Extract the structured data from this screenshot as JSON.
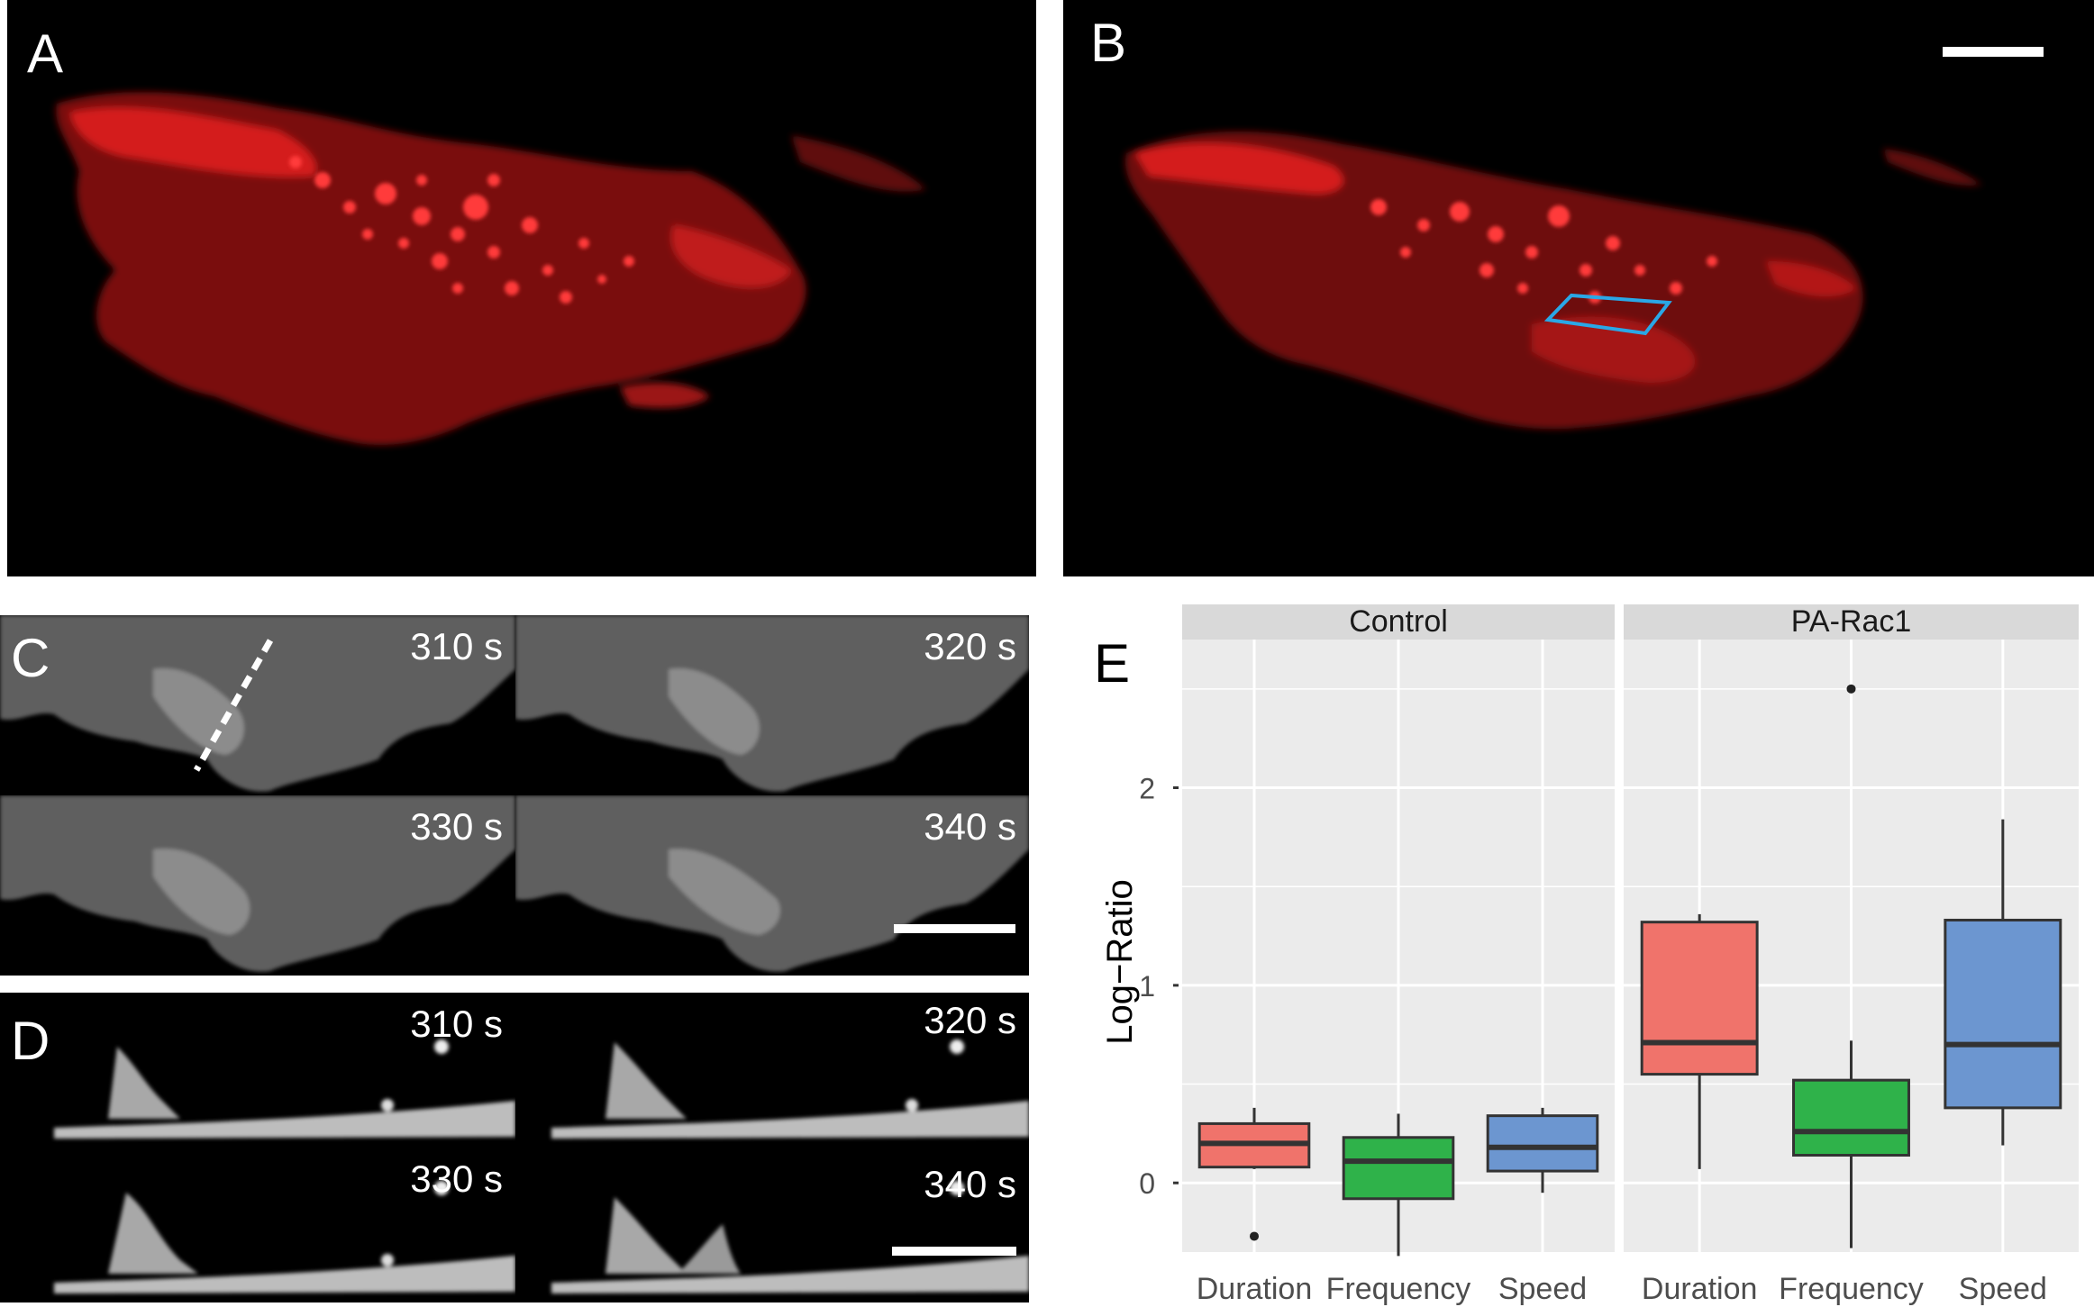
{
  "panels": {
    "a": {
      "label": "A"
    },
    "b": {
      "label": "B"
    },
    "c": {
      "label": "C",
      "times": [
        "310 s",
        "320 s",
        "330 s",
        "340 s"
      ]
    },
    "d": {
      "label": "D",
      "times": [
        "310 s",
        "320 s",
        "330 s",
        "340 s"
      ]
    },
    "e": {
      "label": "E"
    }
  },
  "colors": {
    "cell_red": "#c81414",
    "roi_outline": "#2aa7e6",
    "duration": "#f0736b",
    "frequency": "#2fb24a",
    "speed": "#6c96d0",
    "plot_bg": "#ebebeb",
    "strip_bg": "#d9d9d9"
  },
  "chart_data": {
    "type": "box",
    "ylabel": "Log−Ratio",
    "ylim": [
      -0.35,
      2.75
    ],
    "yticks": [
      0,
      1,
      2
    ],
    "facets": [
      "Control",
      "PA-Rac1"
    ],
    "categories": [
      "Duration",
      "Frequency",
      "Speed"
    ],
    "boxes": [
      {
        "facet": "Control",
        "category": "Duration",
        "whisker_low": 0.07,
        "q1": 0.08,
        "median": 0.2,
        "q3": 0.3,
        "whisker_high": 0.38,
        "outliers": [
          -0.27
        ]
      },
      {
        "facet": "Control",
        "category": "Frequency",
        "whisker_low": -0.37,
        "q1": -0.08,
        "median": 0.11,
        "q3": 0.23,
        "whisker_high": 0.35,
        "outliers": []
      },
      {
        "facet": "Control",
        "category": "Speed",
        "whisker_low": -0.05,
        "q1": 0.06,
        "median": 0.18,
        "q3": 0.34,
        "whisker_high": 0.38,
        "outliers": []
      },
      {
        "facet": "PA-Rac1",
        "category": "Duration",
        "whisker_low": 0.07,
        "q1": 0.55,
        "median": 0.71,
        "q3": 1.32,
        "whisker_high": 1.36,
        "outliers": []
      },
      {
        "facet": "PA-Rac1",
        "category": "Frequency",
        "whisker_low": -0.33,
        "q1": 0.14,
        "median": 0.26,
        "q3": 0.52,
        "whisker_high": 0.72,
        "outliers": [
          2.5
        ]
      },
      {
        "facet": "PA-Rac1",
        "category": "Speed",
        "whisker_low": 0.19,
        "q1": 0.38,
        "median": 0.7,
        "q3": 1.33,
        "whisker_high": 1.84,
        "outliers": []
      }
    ],
    "grid": true,
    "legend": "none"
  }
}
